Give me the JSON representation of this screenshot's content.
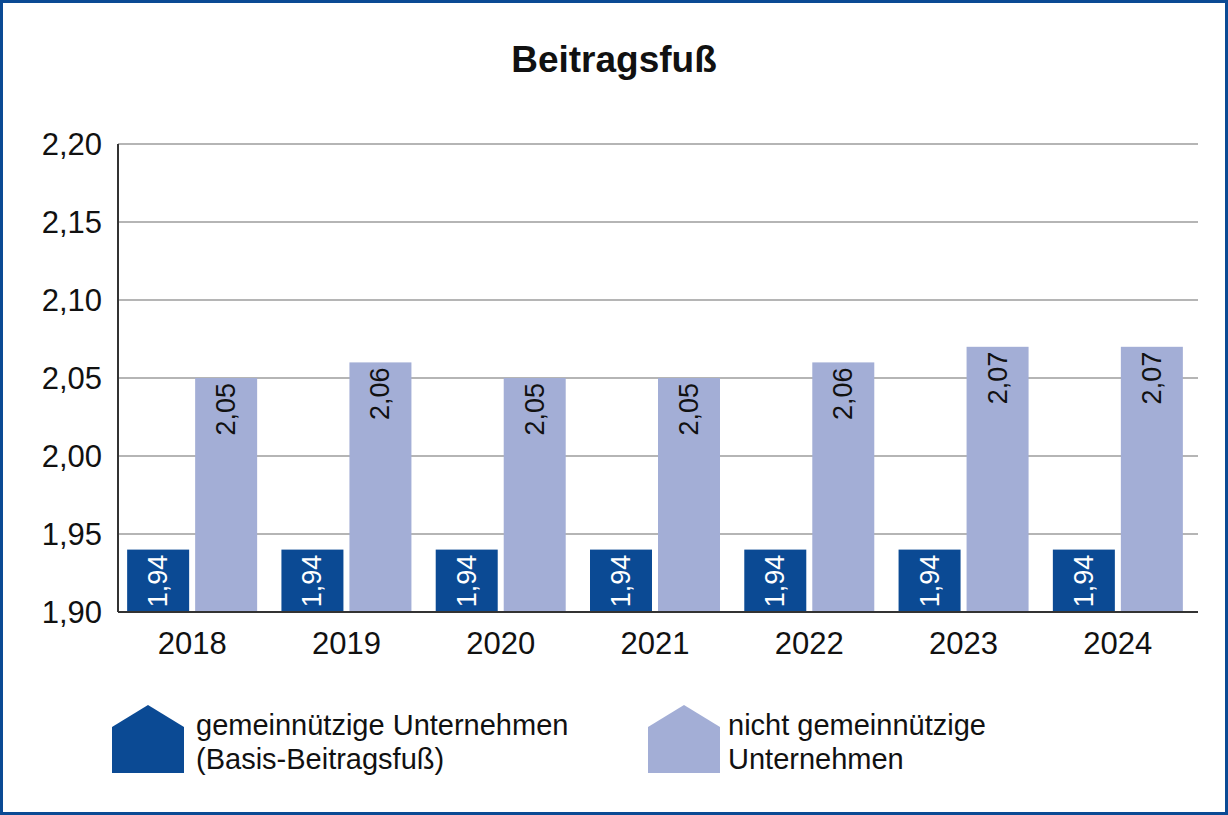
{
  "chart_data": {
    "type": "bar",
    "title": "Beitragsfuß",
    "categories": [
      "2018",
      "2019",
      "2020",
      "2021",
      "2022",
      "2023",
      "2024"
    ],
    "series": [
      {
        "name": "gemeinnützige Unternehmen (Basis-Beitragsfuß)",
        "color": "#0b4a94",
        "values": [
          1.94,
          1.94,
          1.94,
          1.94,
          1.94,
          1.94,
          1.94
        ],
        "value_labels": [
          "1,94",
          "1,94",
          "1,94",
          "1,94",
          "1,94",
          "1,94",
          "1,94"
        ]
      },
      {
        "name": "nicht gemeinnützige Unternehmen",
        "color": "#a3aed6",
        "values": [
          2.05,
          2.06,
          2.05,
          2.05,
          2.06,
          2.07,
          2.07
        ],
        "value_labels": [
          "2,05",
          "2,06",
          "2,05",
          "2,05",
          "2,06",
          "2,07",
          "2,07"
        ]
      }
    ],
    "ylim": [
      1.9,
      2.2
    ],
    "yticks": [
      {
        "value": 1.9,
        "label": "1,90"
      },
      {
        "value": 1.95,
        "label": "1,95"
      },
      {
        "value": 2.0,
        "label": "2,00"
      },
      {
        "value": 2.05,
        "label": "2,05"
      },
      {
        "value": 2.1,
        "label": "2,10"
      },
      {
        "value": 2.15,
        "label": "2,15"
      },
      {
        "value": 2.2,
        "label": "2,20"
      }
    ],
    "grid": true,
    "data_labels": true,
    "legend": "bottom"
  }
}
